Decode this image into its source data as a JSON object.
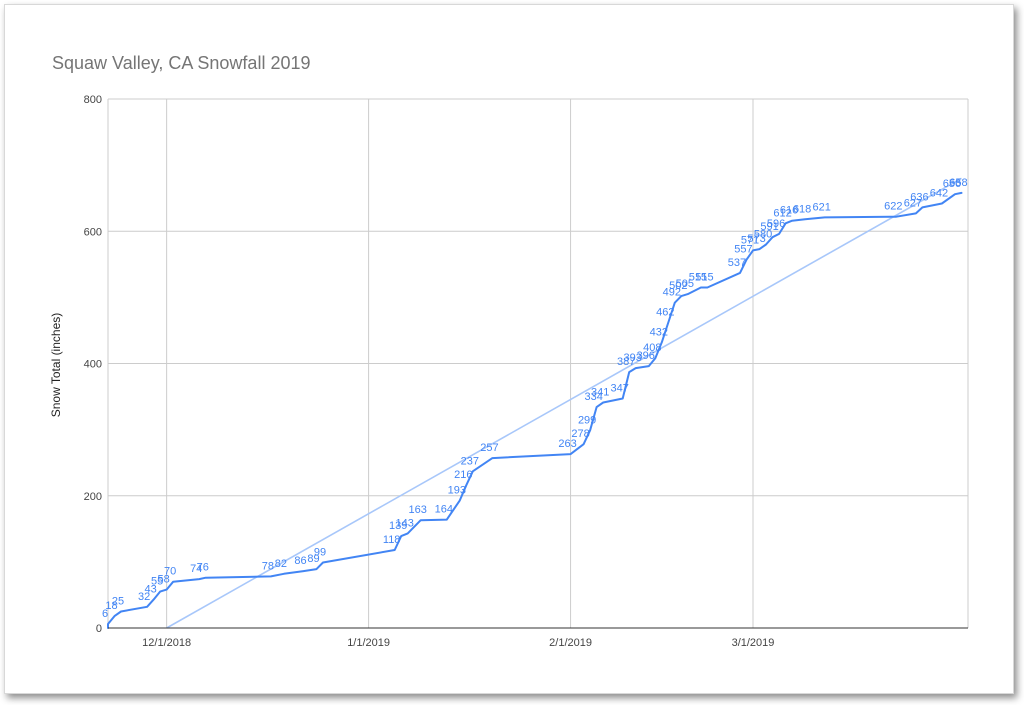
{
  "chart_data": {
    "type": "line",
    "title": "Squaw Valley, CA Snowfall 2019",
    "xlabel": "",
    "ylabel": "Snow Total (inches)",
    "ylim": [
      0,
      800
    ],
    "yticks": [
      0,
      200,
      400,
      600,
      800
    ],
    "xlim": [
      "2018-11-22",
      "2019-04-03"
    ],
    "xticks": [
      {
        "date": "2018-12-01",
        "label": "12/1/2018"
      },
      {
        "date": "2019-01-01",
        "label": "1/1/2019"
      },
      {
        "date": "2019-02-01",
        "label": "2/1/2019"
      },
      {
        "date": "2019-03-01",
        "label": "3/1/2019"
      }
    ],
    "grid": true,
    "legend": "none",
    "colors": {
      "series": "#4285f4",
      "trend": "#a8c7fa",
      "grid": "#cccccc",
      "title": "#757575"
    },
    "series": [
      {
        "type": "line",
        "points": [
          {
            "x": "2018-11-22",
            "y": 0
          },
          {
            "x": "2018-11-22",
            "y": 6,
            "label": "6"
          },
          {
            "x": "2018-11-23",
            "y": 18,
            "label": "18"
          },
          {
            "x": "2018-11-24",
            "y": 25,
            "label": "25"
          },
          {
            "x": "2018-11-28",
            "y": 32,
            "label": "32"
          },
          {
            "x": "2018-11-29",
            "y": 43,
            "label": "43"
          },
          {
            "x": "2018-11-30",
            "y": 55,
            "label": "55"
          },
          {
            "x": "2018-12-01",
            "y": 58,
            "label": "58"
          },
          {
            "x": "2018-12-02",
            "y": 70,
            "label": "70"
          },
          {
            "x": "2018-12-06",
            "y": 74,
            "label": "74"
          },
          {
            "x": "2018-12-07",
            "y": 76,
            "label": "76"
          },
          {
            "x": "2018-12-17",
            "y": 78,
            "label": "78"
          },
          {
            "x": "2018-12-19",
            "y": 82,
            "label": "82"
          },
          {
            "x": "2018-12-22",
            "y": 86,
            "label": "86"
          },
          {
            "x": "2018-12-24",
            "y": 89,
            "label": "89"
          },
          {
            "x": "2018-12-25",
            "y": 99,
            "label": "99"
          },
          {
            "x": "2019-01-05",
            "y": 118,
            "label": "118"
          },
          {
            "x": "2019-01-06",
            "y": 139,
            "label": "139"
          },
          {
            "x": "2019-01-07",
            "y": 143,
            "label": "143"
          },
          {
            "x": "2019-01-09",
            "y": 163,
            "label": "163"
          },
          {
            "x": "2019-01-13",
            "y": 164,
            "label": "164"
          },
          {
            "x": "2019-01-15",
            "y": 193,
            "label": "193"
          },
          {
            "x": "2019-01-16",
            "y": 216,
            "label": "216"
          },
          {
            "x": "2019-01-17",
            "y": 237,
            "label": "237"
          },
          {
            "x": "2019-01-20",
            "y": 257,
            "label": "257"
          },
          {
            "x": "2019-02-01",
            "y": 263,
            "label": "263"
          },
          {
            "x": "2019-02-03",
            "y": 278,
            "label": "278"
          },
          {
            "x": "2019-02-04",
            "y": 299,
            "label": "299"
          },
          {
            "x": "2019-02-05",
            "y": 334,
            "label": "334"
          },
          {
            "x": "2019-02-06",
            "y": 341,
            "label": "341"
          },
          {
            "x": "2019-02-09",
            "y": 347,
            "label": "347"
          },
          {
            "x": "2019-02-10",
            "y": 387,
            "label": "387"
          },
          {
            "x": "2019-02-11",
            "y": 393,
            "label": "393"
          },
          {
            "x": "2019-02-13",
            "y": 396,
            "label": "396"
          },
          {
            "x": "2019-02-14",
            "y": 408,
            "label": "408"
          },
          {
            "x": "2019-02-15",
            "y": 432,
            "label": "432"
          },
          {
            "x": "2019-02-16",
            "y": 462,
            "label": "462"
          },
          {
            "x": "2019-02-17",
            "y": 492,
            "label": "492"
          },
          {
            "x": "2019-02-18",
            "y": 502,
            "label": "502"
          },
          {
            "x": "2019-02-19",
            "y": 505,
            "label": "505"
          },
          {
            "x": "2019-02-21",
            "y": 515,
            "label": "515"
          },
          {
            "x": "2019-02-22",
            "y": 515,
            "label": "515"
          },
          {
            "x": "2019-02-27",
            "y": 537,
            "label": "537"
          },
          {
            "x": "2019-02-28",
            "y": 557,
            "label": "557"
          },
          {
            "x": "2019-03-01",
            "y": 571,
            "label": "571"
          },
          {
            "x": "2019-03-02",
            "y": 573,
            "label": "573"
          },
          {
            "x": "2019-03-03",
            "y": 580,
            "label": "580"
          },
          {
            "x": "2019-03-04",
            "y": 591,
            "label": "591"
          },
          {
            "x": "2019-03-05",
            "y": 596,
            "label": "596"
          },
          {
            "x": "2019-03-06",
            "y": 612,
            "label": "612"
          },
          {
            "x": "2019-03-07",
            "y": 616,
            "label": "616"
          },
          {
            "x": "2019-03-09",
            "y": 618,
            "label": "618"
          },
          {
            "x": "2019-03-12",
            "y": 621,
            "label": "621"
          },
          {
            "x": "2019-03-23",
            "y": 622,
            "label": "622"
          },
          {
            "x": "2019-03-26",
            "y": 627,
            "label": "627"
          },
          {
            "x": "2019-03-27",
            "y": 636,
            "label": "636"
          },
          {
            "x": "2019-03-30",
            "y": 642,
            "label": "642"
          },
          {
            "x": "2019-04-01",
            "y": 656,
            "label": "656"
          },
          {
            "x": "2019-04-02",
            "y": 658,
            "label": "658"
          }
        ]
      },
      {
        "type": "trendline",
        "points": [
          {
            "x": "2018-12-01",
            "y": 0
          },
          {
            "x": "2019-04-02",
            "y": 680
          }
        ]
      }
    ]
  }
}
